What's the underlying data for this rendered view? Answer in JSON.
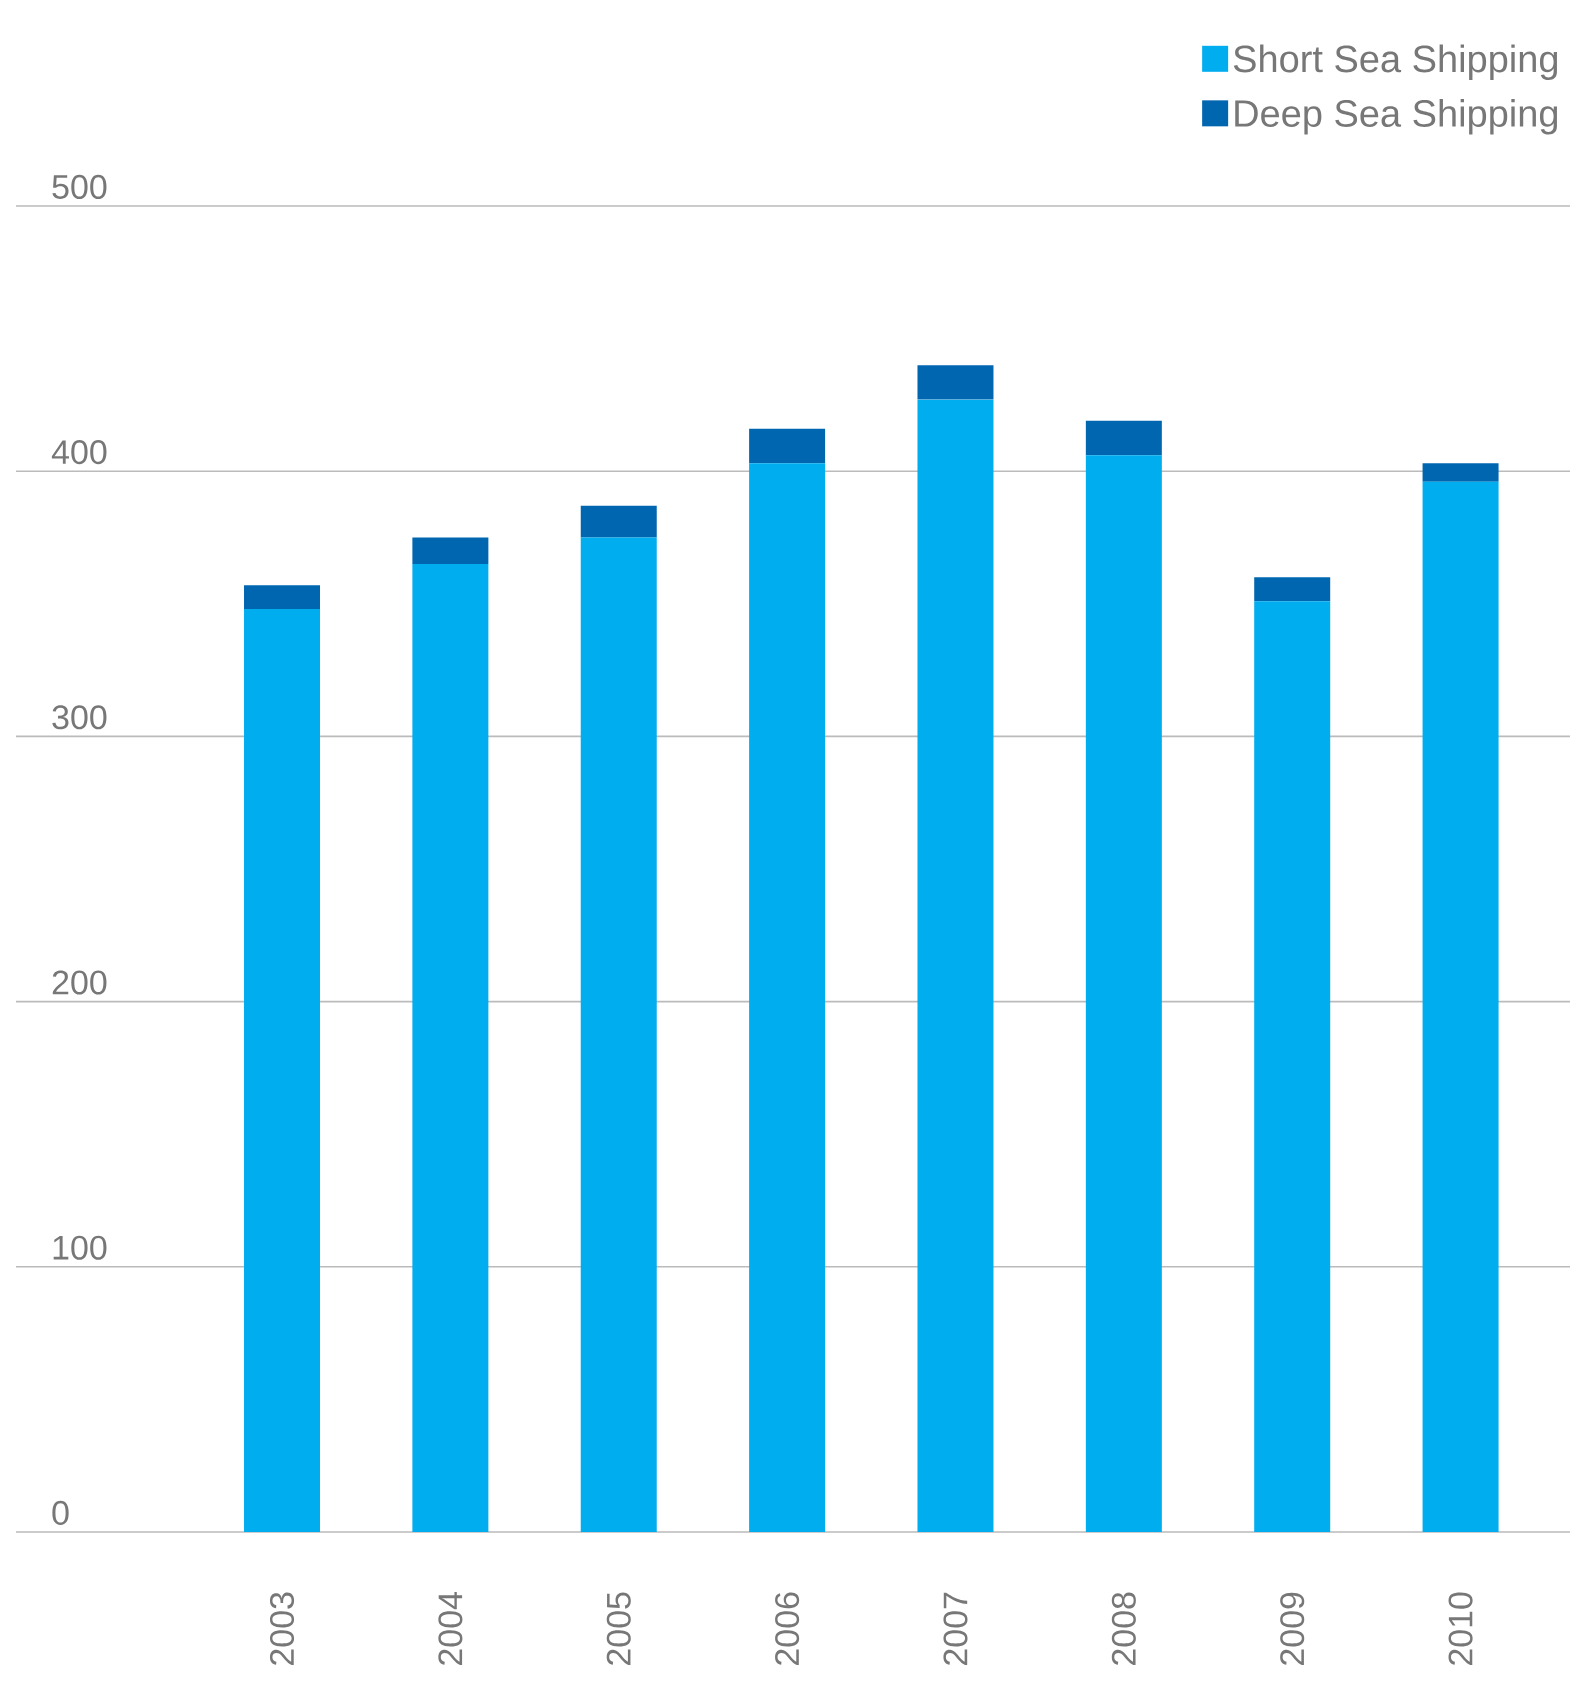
{
  "chart_data": {
    "type": "bar",
    "stacked": true,
    "categories": [
      "2003",
      "2004",
      "2005",
      "2006",
      "2007",
      "2008",
      "2009",
      "2010"
    ],
    "series": [
      {
        "name": "Short Sea Shipping",
        "color": "#00adef",
        "values": [
          348,
          365,
          375,
          403,
          427,
          406,
          351,
          396
        ]
      },
      {
        "name": "Deep Sea Shipping",
        "color": "#0066b0",
        "values": [
          9,
          10,
          12,
          13,
          13,
          13,
          9,
          7
        ]
      }
    ],
    "ylim": [
      0,
      500
    ],
    "yticks": [
      0,
      100,
      200,
      300,
      400,
      500
    ],
    "grid": "y",
    "legend": "top right"
  }
}
